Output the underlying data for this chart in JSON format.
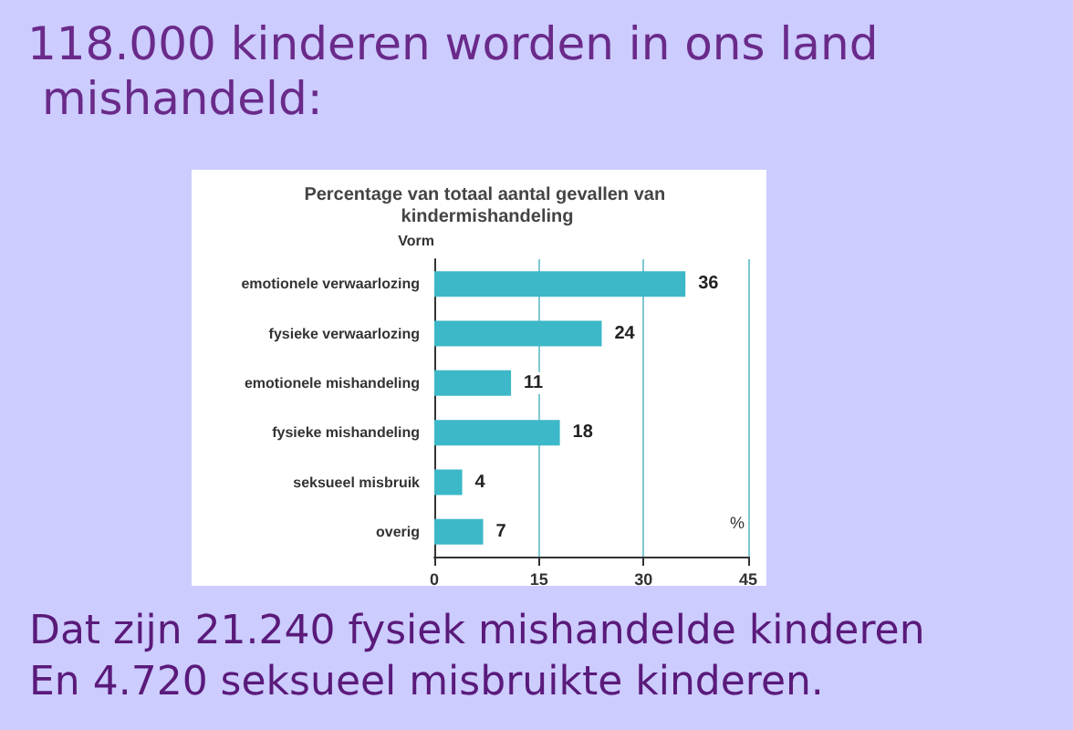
{
  "chart_data": {
    "type": "bar",
    "orientation": "horizontal",
    "title": "118.000 kinderen worden in ons land mishandeld:",
    "subtitle": "Percentage van totaal aantal gevallen van kindermishandeling",
    "ylabel": "Vorm",
    "xlabel": "%",
    "categories": [
      "emotionele verwaarlozing",
      "fysieke verwaarlozing",
      "emotionele mishandeling",
      "fysieke mishandeling",
      "seksueel misbruik",
      "overig"
    ],
    "values": [
      36,
      24,
      11,
      18,
      4,
      7
    ],
    "color": "#3cb8c8",
    "data_labels": true,
    "xlim": [
      0,
      45
    ],
    "xticks": [
      0,
      15,
      30,
      45
    ],
    "grid": "x",
    "annotations": [
      "Dat zijn 21.240 fysiek mishandelde kinderen",
      "En 4.720 seksueel misbruikte kinderen."
    ]
  }
}
